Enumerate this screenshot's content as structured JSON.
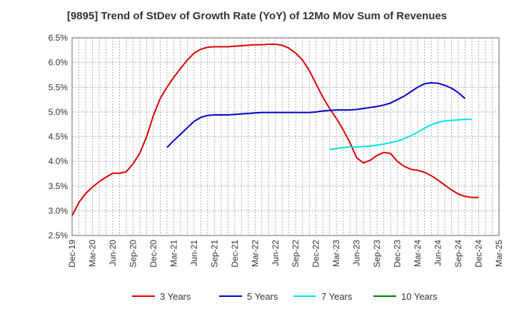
{
  "chart_data": {
    "type": "line",
    "title": "[9895]  Trend of StDev of Growth Rate (YoY) of 12Mo Mov Sum of Revenues",
    "xlabel": "",
    "ylabel": "",
    "ylim": [
      2.5,
      6.5
    ],
    "yticks": [
      "2.5%",
      "3.0%",
      "3.5%",
      "4.0%",
      "4.5%",
      "5.0%",
      "5.5%",
      "6.0%",
      "6.5%"
    ],
    "xticks": [
      "Dec-19",
      "Mar-20",
      "Jun-20",
      "Sep-20",
      "Dec-20",
      "Mar-21",
      "Jun-21",
      "Sep-21",
      "Dec-21",
      "Mar-22",
      "Jun-22",
      "Sep-22",
      "Dec-22",
      "Mar-23",
      "Jun-23",
      "Sep-23",
      "Dec-23",
      "Mar-24",
      "Jun-24",
      "Sep-24",
      "Dec-24",
      "Mar-25"
    ],
    "x_start": "Dec-19",
    "x_months": 63,
    "grid": true,
    "legend_position": "bottom",
    "series": [
      {
        "name": "3 Years",
        "color": "#dd0000",
        "start": 0,
        "values": [
          2.9,
          3.17,
          3.35,
          3.48,
          3.59,
          3.68,
          3.76,
          3.76,
          3.79,
          3.95,
          4.17,
          4.5,
          4.93,
          5.27,
          5.5,
          5.7,
          5.88,
          6.05,
          6.19,
          6.27,
          6.31,
          6.32,
          6.32,
          6.32,
          6.33,
          6.34,
          6.35,
          6.36,
          6.36,
          6.37,
          6.37,
          6.35,
          6.29,
          6.19,
          6.05,
          5.84,
          5.57,
          5.3,
          5.07,
          4.87,
          4.64,
          4.38,
          4.07,
          3.97,
          4.02,
          4.12,
          4.18,
          4.16,
          4.0,
          3.9,
          3.84,
          3.82,
          3.78,
          3.71,
          3.62,
          3.52,
          3.42,
          3.34,
          3.29,
          3.27,
          3.27
        ]
      },
      {
        "name": "5 Years",
        "color": "#0000cc",
        "start": 14,
        "values": [
          4.28,
          4.42,
          4.55,
          4.68,
          4.81,
          4.89,
          4.93,
          4.94,
          4.94,
          4.94,
          4.95,
          4.96,
          4.97,
          4.98,
          4.99,
          4.99,
          4.99,
          4.99,
          4.99,
          4.99,
          4.99,
          4.99,
          5.0,
          5.02,
          5.03,
          5.04,
          5.04,
          5.04,
          5.05,
          5.07,
          5.09,
          5.11,
          5.14,
          5.18,
          5.25,
          5.32,
          5.41,
          5.5,
          5.57,
          5.59,
          5.58,
          5.54,
          5.48,
          5.39,
          5.27
        ]
      },
      {
        "name": "7 Years",
        "color": "#00e5e5",
        "start": 38,
        "values": [
          4.24,
          4.26,
          4.28,
          4.29,
          4.29,
          4.3,
          4.31,
          4.33,
          4.35,
          4.38,
          4.41,
          4.46,
          4.52,
          4.59,
          4.67,
          4.74,
          4.79,
          4.82,
          4.83,
          4.84,
          4.85,
          4.85
        ]
      },
      {
        "name": "10 Years",
        "color": "#007700",
        "start": 0,
        "values": []
      }
    ]
  }
}
